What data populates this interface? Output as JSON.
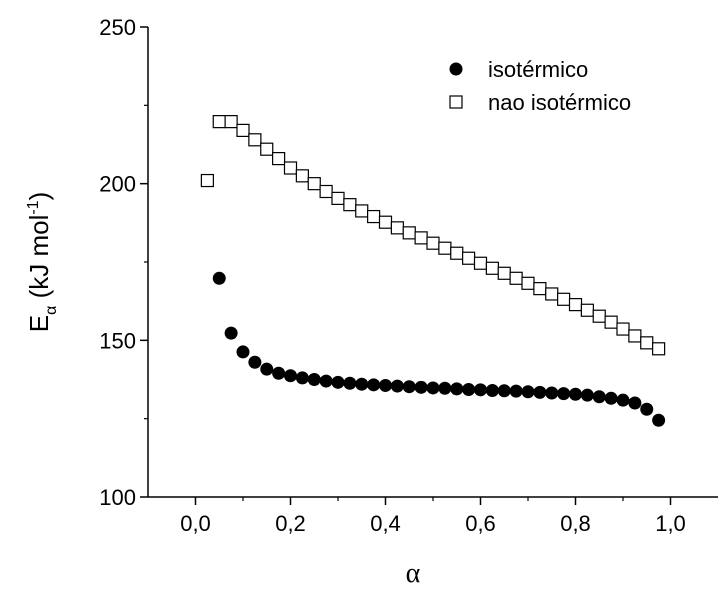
{
  "chart_data": {
    "type": "scatter",
    "title": "",
    "xlabel": "α",
    "ylabel_main": "E",
    "ylabel_sub": "α",
    "ylabel_units_pre": " (kJ mol",
    "ylabel_units_sup": "-1",
    "ylabel_units_post": ")",
    "xlim": [
      -0.1,
      1.1
    ],
    "ylim": [
      100,
      250
    ],
    "xticks": [
      0.0,
      0.2,
      0.4,
      0.6,
      0.8,
      1.0
    ],
    "xtick_labels": [
      "0,0",
      "0,2",
      "0,4",
      "0,6",
      "0,8",
      "1,0"
    ],
    "yticks": [
      100,
      150,
      200,
      250
    ],
    "ytick_labels": [
      "100",
      "150",
      "200",
      "250"
    ],
    "grid": false,
    "legend_position": "top-right",
    "series": [
      {
        "name": "isotérmico",
        "marker": "filled-circle",
        "color": "#000000",
        "x": [
          0.05,
          0.075,
          0.1,
          0.125,
          0.15,
          0.175,
          0.2,
          0.225,
          0.25,
          0.275,
          0.3,
          0.325,
          0.35,
          0.375,
          0.4,
          0.425,
          0.45,
          0.475,
          0.5,
          0.525,
          0.55,
          0.575,
          0.6,
          0.625,
          0.65,
          0.675,
          0.7,
          0.725,
          0.75,
          0.775,
          0.8,
          0.825,
          0.85,
          0.875,
          0.9,
          0.925,
          0.95,
          0.975
        ],
        "y": [
          169.8,
          152.3,
          146.3,
          143.0,
          140.8,
          139.5,
          138.7,
          138.0,
          137.5,
          137.0,
          136.6,
          136.3,
          136.0,
          135.8,
          135.6,
          135.4,
          135.2,
          135.0,
          134.8,
          134.7,
          134.5,
          134.3,
          134.2,
          134.0,
          133.9,
          133.8,
          133.6,
          133.4,
          133.2,
          133.0,
          132.8,
          132.5,
          132.0,
          131.5,
          130.9,
          130.0,
          128.0,
          124.5
        ]
      },
      {
        "name": "nao isotérmico",
        "marker": "open-square",
        "color": "#000000",
        "x": [
          0.025,
          0.05,
          0.075,
          0.1,
          0.125,
          0.15,
          0.175,
          0.2,
          0.225,
          0.25,
          0.275,
          0.3,
          0.325,
          0.35,
          0.375,
          0.4,
          0.425,
          0.45,
          0.475,
          0.5,
          0.525,
          0.55,
          0.575,
          0.6,
          0.625,
          0.65,
          0.675,
          0.7,
          0.725,
          0.75,
          0.775,
          0.8,
          0.825,
          0.85,
          0.875,
          0.9,
          0.925,
          0.95,
          0.975
        ],
        "y": [
          201.0,
          219.8,
          219.8,
          217.0,
          214.0,
          211.0,
          208.0,
          205.0,
          202.5,
          200.0,
          197.5,
          195.3,
          193.3,
          191.3,
          189.5,
          187.7,
          185.9,
          184.3,
          182.7,
          181.0,
          179.4,
          177.8,
          176.2,
          174.6,
          173.0,
          171.4,
          169.8,
          168.2,
          166.5,
          164.8,
          163.1,
          161.4,
          159.6,
          157.7,
          155.8,
          153.6,
          151.4,
          149.2,
          147.3
        ]
      }
    ]
  }
}
